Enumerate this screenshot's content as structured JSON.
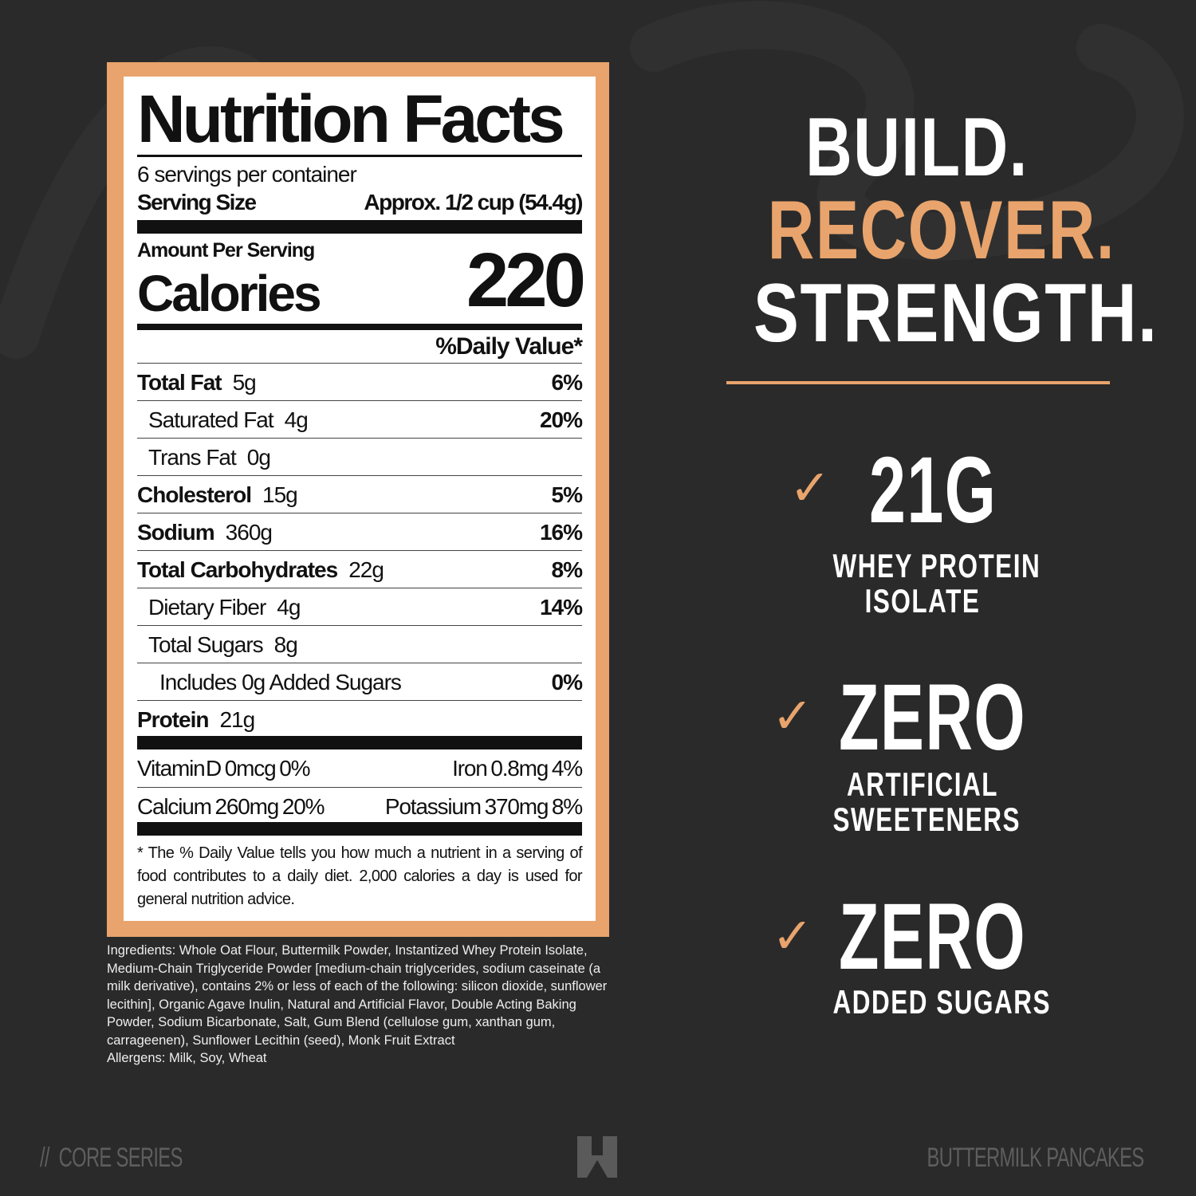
{
  "label": {
    "title": "Nutrition Facts",
    "servings": "6 servings per container",
    "serving_size_label": "Serving Size",
    "serving_size_value": "Approx. 1/2 cup (54.4g)",
    "amount_per_serving": "Amount Per Serving",
    "calories_label": "Calories",
    "calories_value": "220",
    "dv_header": "%Daily Value*",
    "rows": [
      {
        "name": "Total Fat",
        "amount": "5g",
        "dv": "6%"
      },
      {
        "name": "Saturated Fat",
        "amount": "4g",
        "dv": "20%"
      },
      {
        "name": "Trans Fat",
        "amount": "0g",
        "dv": ""
      },
      {
        "name": "Cholesterol",
        "amount": "15g",
        "dv": "5%"
      },
      {
        "name": "Sodium",
        "amount": "360g",
        "dv": "16%"
      },
      {
        "name": "Total Carbohydrates",
        "amount": "22g",
        "dv": "8%"
      },
      {
        "name": "Dietary Fiber",
        "amount": "4g",
        "dv": "14%"
      },
      {
        "name": "Total Sugars",
        "amount": "8g",
        "dv": ""
      },
      {
        "name": "Includes 0g Added Sugars",
        "amount": "",
        "dv": "0%"
      },
      {
        "name": "Protein",
        "amount": "21g",
        "dv": ""
      }
    ],
    "vitamins": [
      {
        "left": "Vitamin D   0mcg   0%",
        "right": "Iron   0.8mg   4%"
      },
      {
        "left": "Calcium   260mg   20%",
        "right": "Potassium   370mg   8%"
      }
    ],
    "footnote": "* The % Daily Value tells you how much a nutrient in a serving of food contributes to a daily diet. 2,000 calories a day is used for general nutrition advice."
  },
  "ingredients": "Ingredients: Whole Oat Flour, Buttermilk Powder, Instantized Whey Protein Isolate, Medium-Chain Triglyceride Powder [medium-chain triglycerides, sodium caseinate (a milk derivative), contains 2% or less of each of the following: silicon dioxide, sunflower lecithin], Organic Agave Inulin, Natural and Artificial Flavor, Double Acting Baking Powder, Sodium Bicarbonate, Salt, Gum Blend (cellulose gum, xanthan gum, carrageenen), Sunflower Lecithin (seed), Monk Fruit Extract",
  "allergens": "Allergens: Milk, Soy, Wheat",
  "headline": {
    "line1": "BUILD.",
    "line2": "RECOVER.",
    "line3": "STRENGTH."
  },
  "claims": [
    {
      "big": "21G",
      "small1": "WHEY PROTEIN",
      "small2": "ISOLATE"
    },
    {
      "big": "ZERO",
      "small1": "ARTIFICIAL",
      "small2": "SWEETENERS"
    },
    {
      "big": "ZERO",
      "small1": "ADDED SUGARS",
      "small2": ""
    }
  ],
  "footer": {
    "left": "//  CORE SERIES",
    "right": "BUTTERMILK PANCAKES",
    "logo": "brand-logo"
  },
  "colors": {
    "accent": "#e8a46c",
    "background": "#2a2a2a",
    "footer_text": "#5e5e5e"
  }
}
